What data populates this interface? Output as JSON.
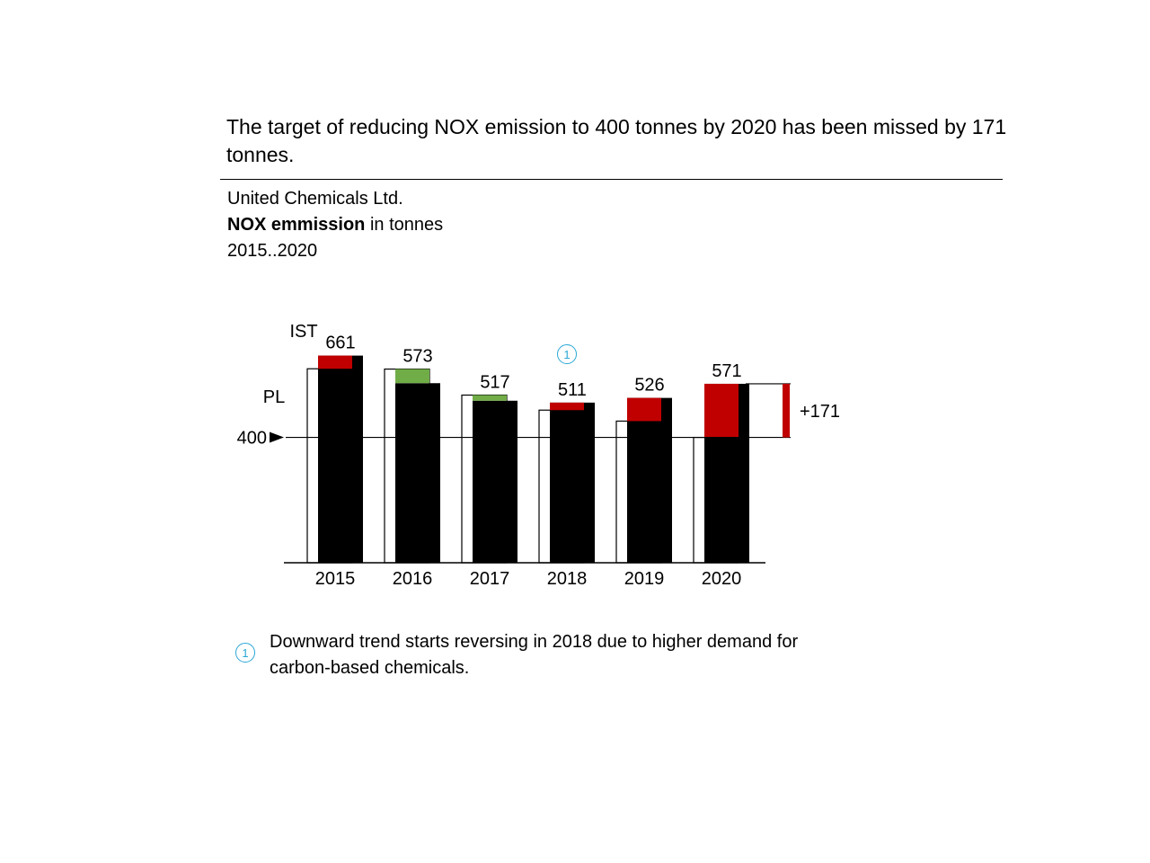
{
  "headline": "The target of reducing NOX emission to 400 tonnes by 2020 has been missed by 171 tonnes.",
  "meta": {
    "company": "United Chemicals Ltd.",
    "measure_bold": "NOX emmission",
    "measure_rest": " in tonnes",
    "period": "2015..2020"
  },
  "footnote": {
    "marker": "1",
    "text": "Downward trend starts reversing in 2018 due to higher demand for carbon-based chemicals."
  },
  "colors": {
    "actual": "#000000",
    "plan": "#ffffff",
    "bad_variance": "#c00000",
    "good_variance": "#70ad47",
    "marker": "#2aa7d6"
  },
  "chart_data": {
    "type": "bar",
    "categories": [
      "2015",
      "2016",
      "2017",
      "2018",
      "2019",
      "2020"
    ],
    "series": [
      {
        "name": "IST",
        "values": [
          661,
          573,
          517,
          511,
          526,
          571
        ]
      },
      {
        "name": "PL",
        "values": [
          619,
          618,
          535,
          487,
          452,
          400
        ]
      }
    ],
    "series_labels": {
      "actual": "IST",
      "plan": "PL"
    },
    "value_labels": [
      "661",
      "573",
      "517",
      "511",
      "526",
      "571"
    ],
    "target": {
      "value": 400,
      "label": "400"
    },
    "final_deviation": {
      "value": 171,
      "label": "+171"
    },
    "marker": {
      "category": "2018",
      "label": "1"
    },
    "ylim": [
      0,
      700
    ],
    "xlabel": "",
    "ylabel": "",
    "grid": false
  }
}
